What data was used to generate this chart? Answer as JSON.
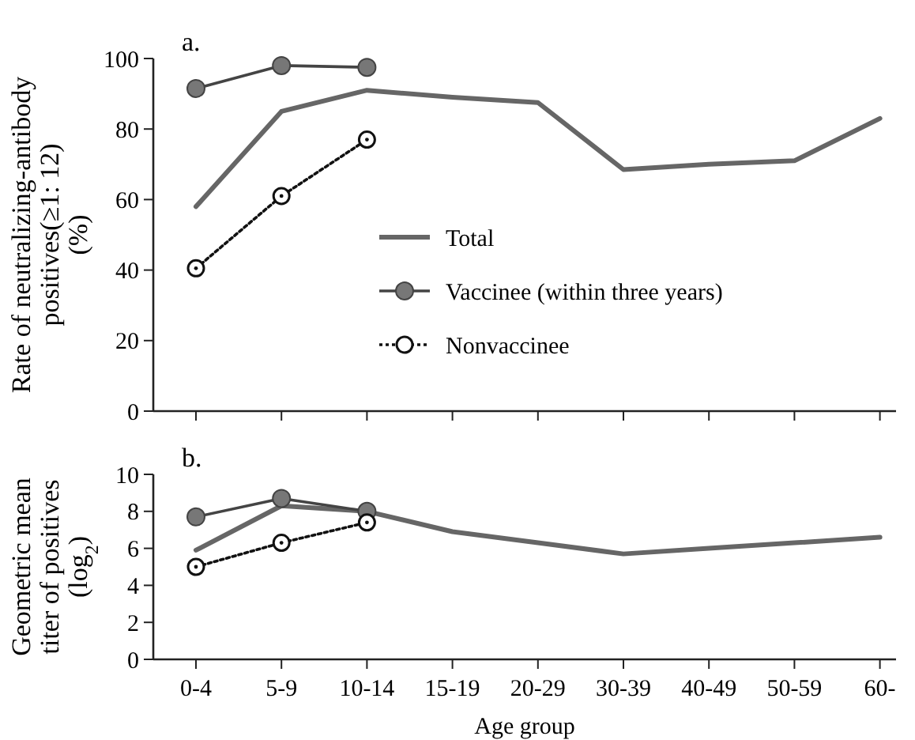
{
  "chart_data": [
    {
      "type": "line",
      "title": "a.",
      "ylabel": "Rate of neutralizing-antibody\npositives(≥1: 12)\n(%)",
      "categories": [
        null,
        null,
        null,
        null,
        null,
        null,
        null,
        null,
        null
      ],
      "ylim": [
        0,
        100
      ],
      "yticks": [
        0,
        20,
        40,
        60,
        80,
        100
      ],
      "tick_labels": "y",
      "legend": "center",
      "grid": false,
      "series": [
        {
          "name": "Total",
          "color": "#666666",
          "marker": "none",
          "line_style": "solid",
          "values": [
            58,
            85,
            91,
            89,
            87.5,
            68.5,
            70,
            71,
            83
          ]
        },
        {
          "name": "Vaccinee (within three years)",
          "color": "#444444",
          "marker": "circle",
          "line_style": "solid",
          "values": [
            91.5,
            98,
            97.5,
            null,
            null,
            null,
            null,
            null,
            null
          ]
        },
        {
          "name": "Nonvaccinee",
          "color": "#111111",
          "marker": "open circle",
          "line_style": "dotted",
          "values": [
            40.5,
            61,
            77,
            null,
            null,
            null,
            null,
            null,
            null
          ]
        }
      ]
    },
    {
      "type": "line",
      "title": "b.",
      "ylabel": "Geometric mean\ntiter of positives\n(log$_{2}$)",
      "xlabel": "Age group",
      "categories": [
        "0-4",
        "5-9",
        "10-14",
        "15-19",
        "20-29",
        "30-39",
        "40-49",
        "50-59",
        "60-"
      ],
      "ylim": [
        0,
        10
      ],
      "yticks": [
        0,
        2,
        4,
        6,
        8,
        10
      ],
      "legend": false,
      "grid": false,
      "series": [
        {
          "color": "#666666",
          "marker": "none",
          "line_style": "solid",
          "values": [
            5.9,
            8.3,
            8.0,
            6.9,
            6.3,
            5.7,
            6.0,
            6.3,
            6.6
          ]
        },
        {
          "color": "#444444",
          "marker": "circle",
          "line_style": "solid",
          "values": [
            7.7,
            8.7,
            8.0,
            null,
            null,
            null,
            null,
            null,
            null
          ]
        },
        {
          "color": "#111111",
          "marker": "open circle",
          "line_style": "dotted",
          "values": [
            5.0,
            6.3,
            7.4,
            null,
            null,
            null,
            null,
            null,
            null
          ]
        }
      ]
    }
  ]
}
